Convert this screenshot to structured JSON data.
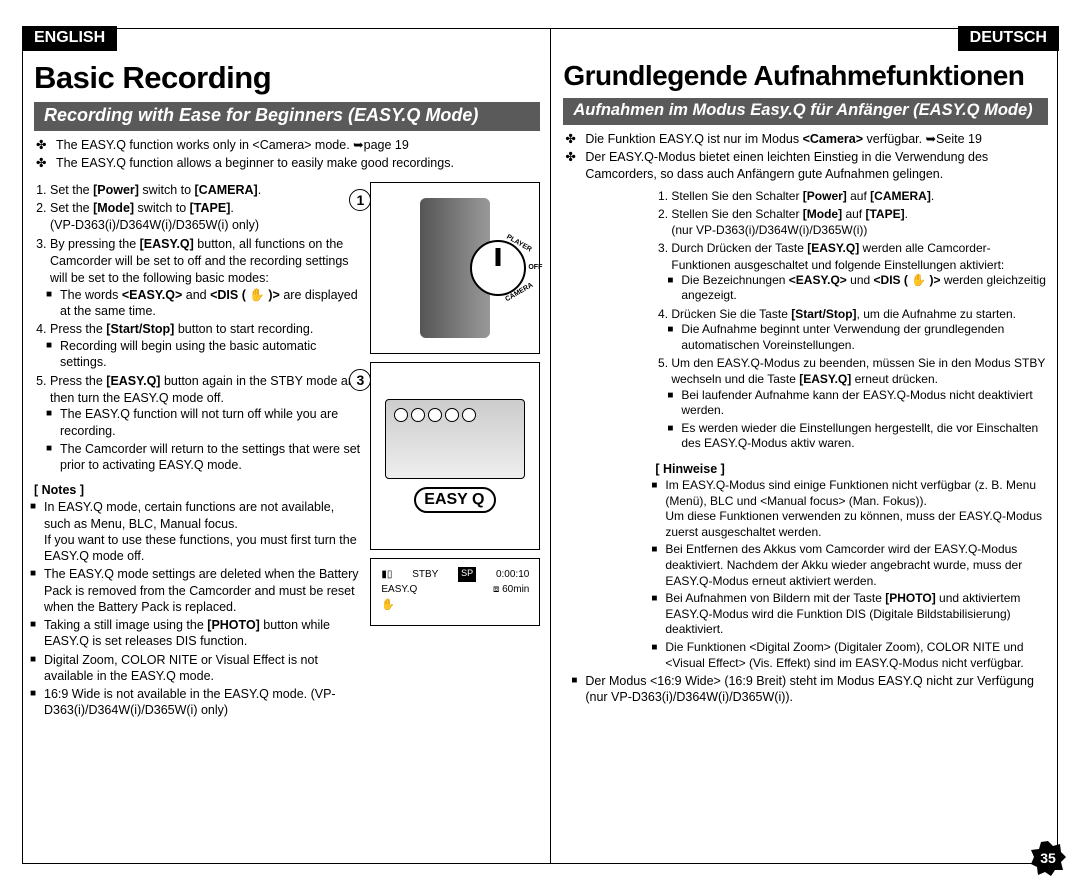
{
  "page_number": "35",
  "english": {
    "lang_tag": "ENGLISH",
    "title": "Basic Recording",
    "subheader": "Recording with Ease for Beginners (EASY.Q Mode)",
    "intro": [
      "The EASY.Q function works only in <Camera> mode. ➥page 19",
      "The EASY.Q function allows a beginner to easily make good recordings."
    ],
    "steps": {
      "s1": "Set the <b>[Power]</b> switch to <b>[CAMERA]</b>.",
      "s2a": "Set the <b>[Mode]</b> switch to <b>[TAPE]</b>.",
      "s2b": "(VP-D363(i)/D364W(i)/D365W(i) only)",
      "s3": "By pressing the <b>[EASY.Q]</b> button, all functions on the Camcorder will be set to off and the recording settings will be set to the following basic modes:",
      "s3b1": "The words <b>&lt;EASY.Q&gt;</b> and <b>&lt;DIS ( ✋ )&gt;</b> are displayed at the same time.",
      "s4": "Press the <b>[Start/Stop]</b> button to start recording.",
      "s4b1": "Recording will begin using the basic automatic settings.",
      "s5": "Press the <b>[EASY.Q]</b> button again in the STBY mode and then turn the EASY.Q mode off.",
      "s5b1": "The EASY.Q function will not turn off while you are recording.",
      "s5b2": "The Camcorder will return to the settings that were set prior to activating EASY.Q mode."
    },
    "notes_hdr": "[ Notes ]",
    "notes": [
      "In EASY.Q mode, certain functions are not available, such as Menu, BLC, Manual focus.\nIf you want to use these functions, you must first turn the EASY.Q mode off.",
      "The EASY.Q mode settings are deleted when the Battery Pack is removed from the Camcorder and must be reset when the Battery Pack is replaced.",
      "Taking a still image using the <b>[PHOTO]</b> button while EASY.Q is set releases DIS function.",
      "Digital Zoom, COLOR NITE or Visual Effect is not available in the EASY.Q mode.",
      "16:9 Wide is not available in the EASY.Q mode. (VP-D363(i)/D364W(i)/D365W(i) only)"
    ]
  },
  "deutsch": {
    "lang_tag": "DEUTSCH",
    "title": "Grundlegende Aufnahmefunktionen",
    "subheader": "Aufnahmen im Modus Easy.Q für Anfänger (EASY.Q Mode)",
    "intro": [
      "Die Funktion EASY.Q ist nur im Modus <b>&lt;Camera&gt;</b> verfügbar. ➥Seite 19",
      "Der EASY.Q-Modus bietet einen leichten Einstieg in die Verwendung des Camcorders, so dass auch Anfängern gute Aufnahmen gelingen."
    ],
    "steps": {
      "s1": "Stellen Sie den Schalter <b>[Power]</b> auf <b>[CAMERA]</b>.",
      "s2a": "Stellen Sie den Schalter <b>[Mode]</b> auf <b>[TAPE]</b>.",
      "s2b": "(nur VP-D363(i)/D364W(i)/D365W(i))",
      "s3": "Durch Drücken der Taste <b>[EASY.Q]</b> werden alle Camcorder-Funktionen ausgeschaltet und folgende Einstellungen aktiviert:",
      "s3b1": "Die Bezeichnungen <b>&lt;EASY.Q&gt;</b> und <b>&lt;DIS ( ✋ )&gt;</b> werden gleichzeitig angezeigt.",
      "s4": "Drücken Sie die Taste <b>[Start/Stop]</b>, um die Aufnahme zu starten.",
      "s4b1": "Die Aufnahme beginnt unter Verwendung der grundlegenden automatischen Voreinstellungen.",
      "s5": "Um den EASY.Q-Modus zu beenden, müssen Sie in den Modus STBY wechseln und die Taste <b>[EASY.Q]</b> erneut drücken.",
      "s5b1": "Bei laufender Aufnahme kann der EASY.Q-Modus nicht deaktiviert werden.",
      "s5b2": "Es werden wieder die Einstellungen hergestellt, die vor Einschalten des EASY.Q-Modus aktiv waren."
    },
    "notes_hdr": "[ Hinweise ]",
    "notes": [
      "Im EASY.Q-Modus sind einige Funktionen nicht verfügbar (z. B. Menu (Menü), BLC und &lt;Manual focus&gt; (Man. Fokus)).\nUm diese Funktionen verwenden zu können, muss der EASY.Q-Modus zuerst ausgeschaltet werden.",
      "Bei Entfernen des Akkus vom Camcorder wird der EASY.Q-Modus deaktiviert. Nachdem der Akku wieder angebracht wurde, muss der EASY.Q-Modus erneut aktiviert werden.",
      "Bei Aufnahmen von Bildern mit der Taste <b>[PHOTO]</b> und aktiviertem EASY.Q-Modus wird die Funktion DIS (Digitale Bildstabilisierung) deaktiviert.",
      "Die Funktionen &lt;Digital Zoom&gt; (Digitaler Zoom), COLOR NITE und &lt;Visual Effect&gt; (Vis. Effekt) sind im EASY.Q-Modus nicht verfügbar."
    ],
    "notes_last": "Der Modus &lt;16:9 Wide&gt; (16:9 Breit) steht im Modus EASY.Q nicht zur Verfügung (nur VP-D363(i)/D364W(i)/D365W(i))."
  },
  "figures": {
    "fig1_num": "1",
    "fig1_player": "PLAYER",
    "fig1_off": "OFF",
    "fig1_camera": "CAMERA",
    "fig3_num": "3",
    "fig3_easy": "EASY Q",
    "osd": {
      "stby": "STBY",
      "sp": "SP",
      "time": "0:00:10",
      "min": "60min",
      "easy": "EASY.Q"
    }
  }
}
